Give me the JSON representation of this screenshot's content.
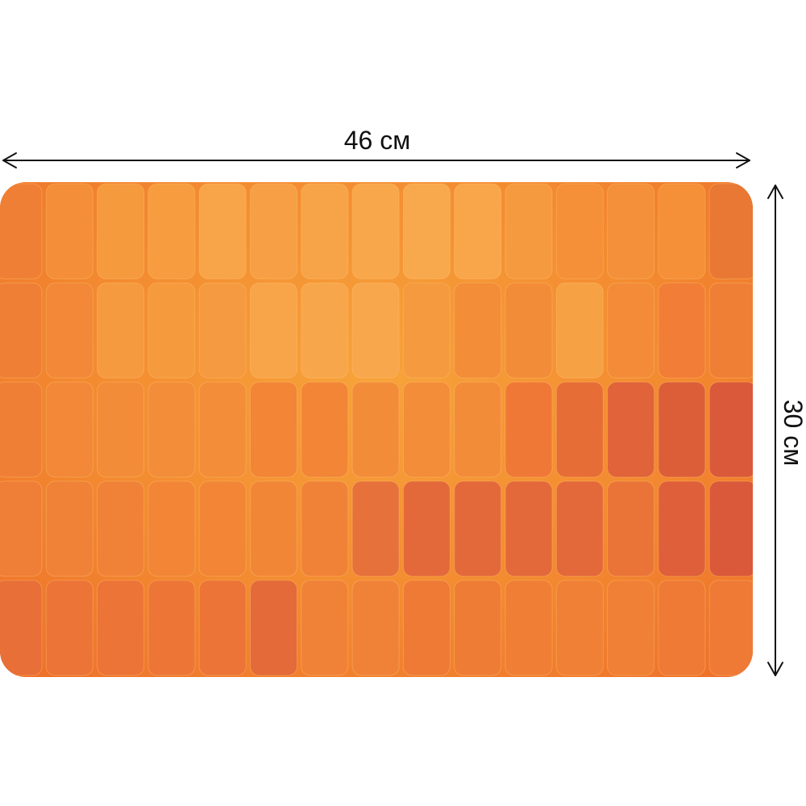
{
  "dimensions": {
    "width_label": "46 см",
    "height_label": "30 см"
  },
  "product": {
    "tile_palette": [
      [
        "#f07f36",
        "#f48e38",
        "#f69a3e",
        "#f79d40",
        "#f8a448",
        "#f69f45",
        "#f7a449",
        "#f8a74b",
        "#f9a94d",
        "#f9a64b",
        "#f69a3f",
        "#f58f38",
        "#f4903a",
        "#f58f38",
        "#e87833"
      ],
      [
        "#f07f36",
        "#f28838",
        "#f69a3f",
        "#f69a3e",
        "#f59a40",
        "#f8a449",
        "#f8a64b",
        "#f8a74c",
        "#f59a3e",
        "#f38d38",
        "#f38c38",
        "#f6a143",
        "#f38b38",
        "#f27d36",
        "#f07f36"
      ],
      [
        "#f07f36",
        "#f28838",
        "#f38c38",
        "#f38d39",
        "#f38d39",
        "#f28536",
        "#f28536",
        "#f38c38",
        "#f38d39",
        "#f38c38",
        "#f07836",
        "#e76d36",
        "#e0633a",
        "#dc5e39",
        "#d9593a"
      ],
      [
        "#ef7e36",
        "#f08238",
        "#f08238",
        "#f28536",
        "#f28536",
        "#f28637",
        "#f08238",
        "#e7713a",
        "#e4693a",
        "#e4693a",
        "#e4693a",
        "#e4693a",
        "#ea7438",
        "#df5f3a",
        "#da593a"
      ],
      [
        "#e96f38",
        "#ec7437",
        "#ec7437",
        "#ed7636",
        "#ec7437",
        "#e46a3a",
        "#f08238",
        "#f08238",
        "#ee7a36",
        "#ef7c35",
        "#f07e35",
        "#f08035",
        "#f08035",
        "#ee7a36",
        "#ee7a36"
      ]
    ]
  }
}
